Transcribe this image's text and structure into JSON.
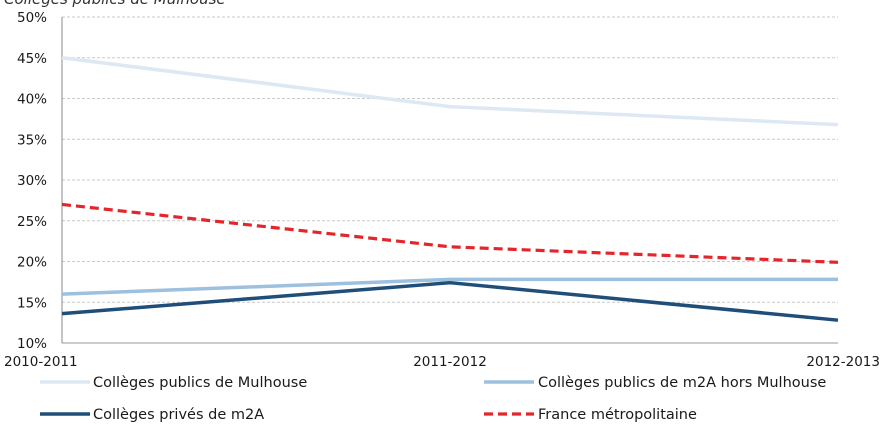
{
  "chart_data": {
    "type": "line",
    "title": "Collèges publics de Mulhouse",
    "categories": [
      "2010-2011",
      "2011-2012",
      "2012-2013"
    ],
    "series": [
      {
        "name": "Collèges publics de Mulhouse",
        "values": [
          45.0,
          39.0,
          36.8
        ],
        "color": "#dde8f3",
        "dash": "solid"
      },
      {
        "name": "Collèges publics de m2A hors Mulhouse",
        "values": [
          16.0,
          17.8,
          17.8
        ],
        "color": "#9dc0df",
        "dash": "solid"
      },
      {
        "name": "Collèges privés de m2A",
        "values": [
          13.6,
          17.4,
          12.8
        ],
        "color": "#1f4e79",
        "dash": "solid"
      },
      {
        "name": "France métropolitaine",
        "values": [
          27.0,
          21.8,
          19.9
        ],
        "color": "#e3262b",
        "dash": "dashed"
      }
    ],
    "ylim": [
      10,
      50
    ],
    "yticks": [
      "10%",
      "15%",
      "20%",
      "25%",
      "30%",
      "35%",
      "40%",
      "45%",
      "50%"
    ],
    "grid": true,
    "legend_position": "bottom"
  }
}
